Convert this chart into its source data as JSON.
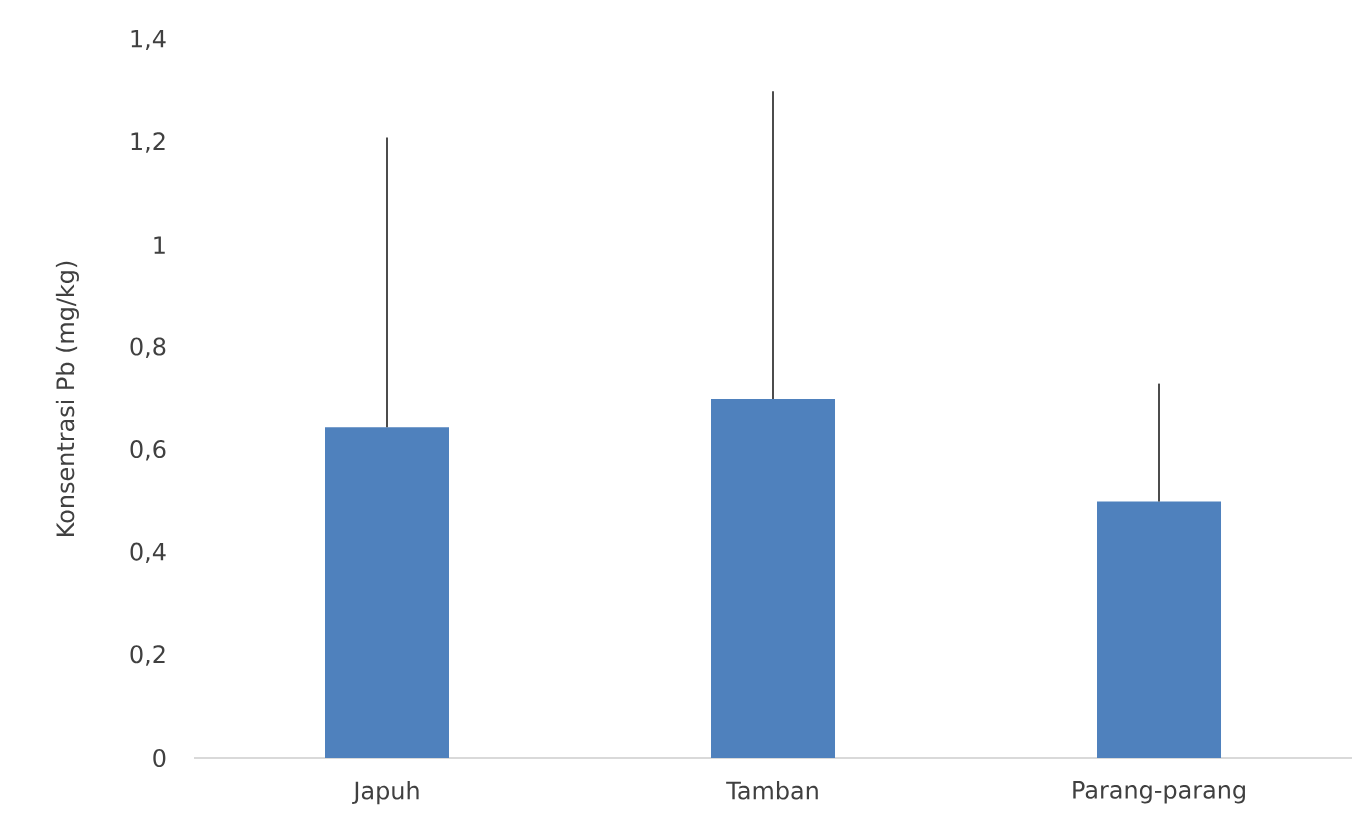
{
  "chart_data": {
    "type": "bar",
    "ylabel": "Konsentrasi Pb (mg/kg)",
    "categories": [
      "Japuh",
      "Tamban",
      "Parang-parang"
    ],
    "values": [
      0.645,
      0.7,
      0.5
    ],
    "errors": [
      [
        0.645,
        1.21
      ],
      [
        0.7,
        1.3
      ],
      [
        0.5,
        0.73
      ]
    ],
    "color": "#4f81bd",
    "ylim": [
      0,
      1.4
    ],
    "yticks": [
      0,
      {
        "value": 0.2,
        "label": "0,2"
      },
      {
        "value": 0.4,
        "label": "0,4"
      },
      {
        "value": 0.6,
        "label": "0,6"
      },
      {
        "value": 0.8,
        "label": "0,8"
      },
      1,
      {
        "value": 1.2,
        "label": "1,2"
      },
      {
        "value": 1.4,
        "label": "1,4"
      }
    ],
    "grid": false
  }
}
